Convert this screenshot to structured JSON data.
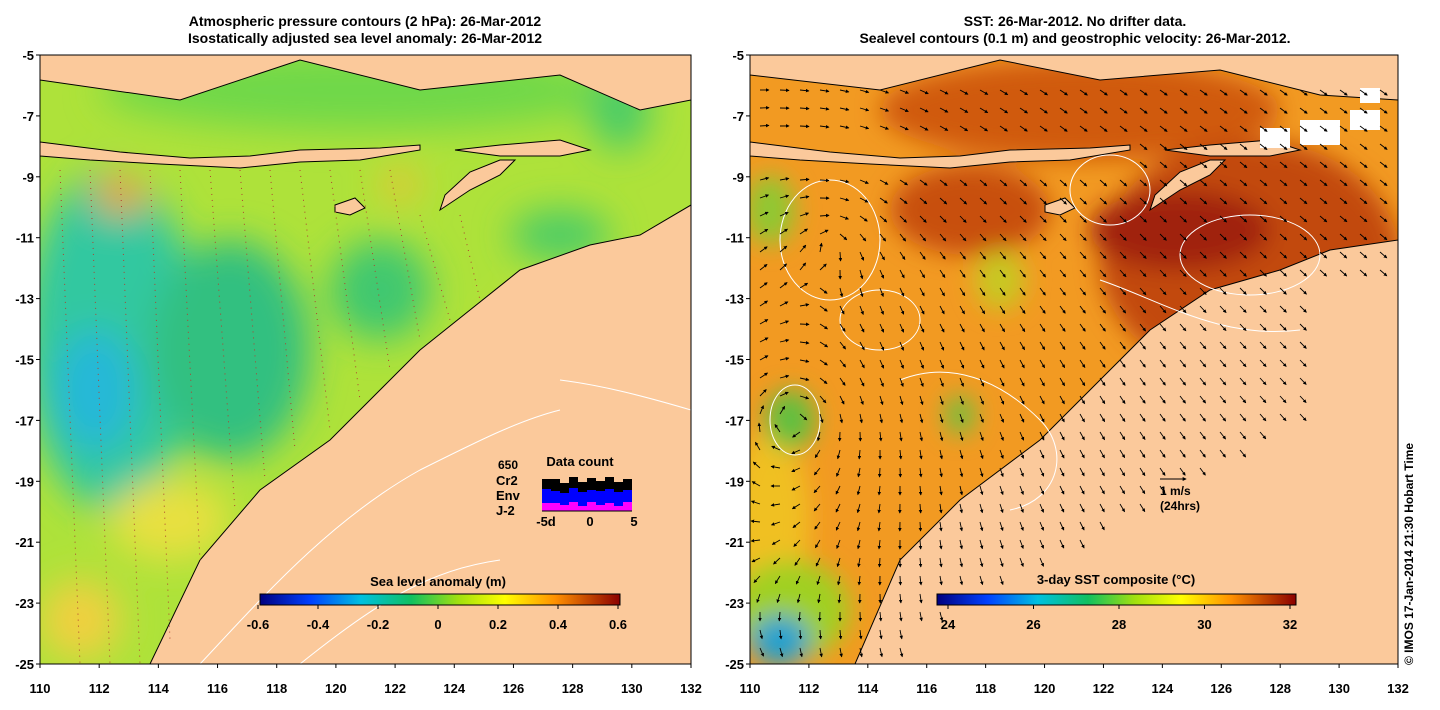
{
  "left_panel": {
    "title_line1": "Atmospheric pressure contours (2 hPa): 26-Mar-2012",
    "title_line2": "Isostatically adjusted sea level anomaly: 26-Mar-2012",
    "colorbar_label": "Sea level anomaly (m)",
    "colorbar_ticks": [
      "-0.6",
      "-0.4",
      "-0.2",
      "0",
      "0.2",
      "0.4",
      "0.6"
    ],
    "data_count": {
      "title": "Data count",
      "max_label": "650",
      "satellites": [
        {
          "name": "Cr2",
          "color": "#000000"
        },
        {
          "name": "Env",
          "color": "#0000ff"
        },
        {
          "name": "J-2",
          "color": "#ff00ff"
        }
      ],
      "x_ticks": [
        "-5d",
        "0",
        "5"
      ]
    }
  },
  "right_panel": {
    "title_line1": "SST: 26-Mar-2012. No drifter data.",
    "title_line2": "Sealevel contours (0.1 m) and geostrophic velocity: 26-Mar-2012.",
    "colorbar_label": "3-day SST composite (°C)",
    "colorbar_ticks": [
      "24",
      "26",
      "28",
      "30",
      "32"
    ],
    "velocity_scale": {
      "label": "1 m/s",
      "sublabel": "(24hrs)"
    }
  },
  "axes": {
    "lon_ticks": [
      "110",
      "112",
      "114",
      "116",
      "118",
      "120",
      "122",
      "124",
      "126",
      "128",
      "130",
      "132"
    ],
    "lat_ticks": [
      "-5",
      "-7",
      "-9",
      "-11",
      "-13",
      "-15",
      "-17",
      "-19",
      "-21",
      "-23",
      "-25"
    ]
  },
  "copyright": "© IMOS 17-Jan-2014 21:30 Hobart Time"
}
